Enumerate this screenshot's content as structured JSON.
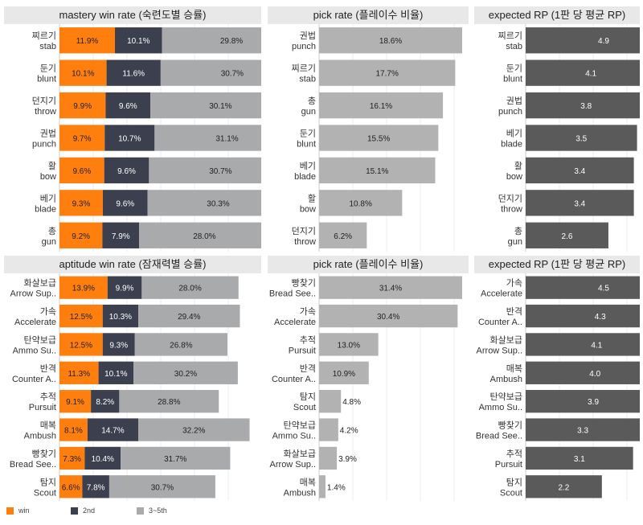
{
  "colors": {
    "win": "#ff7f0e",
    "second": "#3b3f4e",
    "third": "#a8aaac",
    "pick": "#b2b2b2",
    "rp": "#5a5a5a"
  },
  "legend": [
    {
      "label": "win",
      "color": "#ff7f0e"
    },
    {
      "label": "2nd",
      "color": "#3b3f4e"
    },
    {
      "label": "3~5th",
      "color": "#a8aaac"
    }
  ],
  "chart_data": [
    {
      "type": "bar",
      "title": "mastery win rate (숙련도별 승률)",
      "stacked": true,
      "categories": [
        [
          "찌르기",
          "stab"
        ],
        [
          "둔기",
          "blunt"
        ],
        [
          "던지기",
          "throw"
        ],
        [
          "권법",
          "punch"
        ],
        [
          "활",
          "bow"
        ],
        [
          "베기",
          "blade"
        ],
        [
          "총",
          "gun"
        ]
      ],
      "series": [
        {
          "name": "win",
          "values": [
            11.9,
            10.1,
            9.9,
            9.7,
            9.6,
            9.3,
            9.2
          ],
          "labels": [
            "11.9%",
            "10.1%",
            "9.9%",
            "9.7%",
            "9.6%",
            "9.3%",
            "9.2%"
          ]
        },
        {
          "name": "2nd",
          "values": [
            10.1,
            11.6,
            9.6,
            10.7,
            9.6,
            9.6,
            7.9
          ],
          "labels": [
            "10.1%",
            "11.6%",
            "9.6%",
            "10.7%",
            "9.6%",
            "9.6%",
            "7.9%"
          ]
        },
        {
          "name": "3~5th",
          "values": [
            29.8,
            30.7,
            30.1,
            31.1,
            30.7,
            30.3,
            28.0
          ],
          "labels": [
            "29.8%",
            "30.7%",
            "30.1%",
            "31.1%",
            "30.7%",
            "30.3%",
            "28.0%"
          ]
        }
      ]
    },
    {
      "type": "bar",
      "title": "pick rate (플레이수 비율)",
      "categories": [
        [
          "권법",
          "punch"
        ],
        [
          "찌르기",
          "stab"
        ],
        [
          "총",
          "gun"
        ],
        [
          "둔기",
          "blunt"
        ],
        [
          "베기",
          "blade"
        ],
        [
          "활",
          "bow"
        ],
        [
          "던지기",
          "throw"
        ]
      ],
      "values": [
        18.6,
        17.7,
        16.1,
        15.5,
        15.1,
        10.8,
        6.2
      ],
      "labels": [
        "18.6%",
        "17.7%",
        "16.1%",
        "15.5%",
        "15.1%",
        "10.8%",
        "6.2%"
      ]
    },
    {
      "type": "bar",
      "title": "expected RP (1판 당 평균 RP)",
      "categories": [
        [
          "찌르기",
          "stab"
        ],
        [
          "둔기",
          "blunt"
        ],
        [
          "권법",
          "punch"
        ],
        [
          "베기",
          "blade"
        ],
        [
          "활",
          "bow"
        ],
        [
          "던지기",
          "throw"
        ],
        [
          "총",
          "gun"
        ]
      ],
      "values": [
        4.9,
        4.1,
        3.8,
        3.5,
        3.4,
        3.4,
        2.6
      ],
      "labels": [
        "4.9",
        "4.1",
        "3.8",
        "3.5",
        "3.4",
        "3.4",
        "2.6"
      ]
    },
    {
      "type": "bar",
      "title": "aptitude win rate (잠재력별 승률)",
      "stacked": true,
      "categories": [
        [
          "화살보급",
          "Arrow Sup.."
        ],
        [
          "가속",
          "Accelerate"
        ],
        [
          "탄약보급",
          "Ammo Su.."
        ],
        [
          "반격",
          "Counter A.."
        ],
        [
          "추적",
          "Pursuit"
        ],
        [
          "매복",
          "Ambush"
        ],
        [
          "빵찾기",
          "Bread See.."
        ],
        [
          "탐지",
          "Scout"
        ]
      ],
      "series": [
        {
          "name": "win",
          "values": [
            13.9,
            12.5,
            12.5,
            11.3,
            9.1,
            8.1,
            7.3,
            6.6
          ],
          "labels": [
            "13.9%",
            "12.5%",
            "12.5%",
            "11.3%",
            "9.1%",
            "8.1%",
            "7.3%",
            "6.6%"
          ]
        },
        {
          "name": "2nd",
          "values": [
            9.9,
            10.3,
            9.3,
            10.1,
            8.2,
            14.7,
            10.4,
            7.8
          ],
          "labels": [
            "9.9%",
            "10.3%",
            "9.3%",
            "10.1%",
            "8.2%",
            "14.7%",
            "10.4%",
            "7.8%"
          ]
        },
        {
          "name": "3~5th",
          "values": [
            28.0,
            29.4,
            26.8,
            30.2,
            28.8,
            32.2,
            31.7,
            30.7
          ],
          "labels": [
            "28.0%",
            "29.4%",
            "26.8%",
            "30.2%",
            "28.8%",
            "32.2%",
            "31.7%",
            "30.7%"
          ]
        }
      ]
    },
    {
      "type": "bar",
      "title": "pick rate (플레이수 비율)",
      "categories": [
        [
          "빵찾기",
          "Bread See.."
        ],
        [
          "가속",
          "Accelerate"
        ],
        [
          "추적",
          "Pursuit"
        ],
        [
          "반격",
          "Counter A.."
        ],
        [
          "탐지",
          "Scout"
        ],
        [
          "탄약보급",
          "Ammo Su.."
        ],
        [
          "화살보급",
          "Arrow Sup.."
        ],
        [
          "매복",
          "Ambush"
        ]
      ],
      "values": [
        31.4,
        30.4,
        13.0,
        10.9,
        4.8,
        4.2,
        3.9,
        1.4
      ],
      "labels": [
        "31.4%",
        "30.4%",
        "13.0%",
        "10.9%",
        "4.8%",
        "4.2%",
        "3.9%",
        "1.4%"
      ]
    },
    {
      "type": "bar",
      "title": "expected RP (1판 당 평균 RP)",
      "categories": [
        [
          "가속",
          "Accelerate"
        ],
        [
          "반격",
          "Counter A.."
        ],
        [
          "화살보급",
          "Arrow Sup.."
        ],
        [
          "매복",
          "Ambush"
        ],
        [
          "탄약보급",
          "Ammo Su.."
        ],
        [
          "빵찾기",
          "Bread See.."
        ],
        [
          "추적",
          "Pursuit"
        ],
        [
          "탐지",
          "Scout"
        ]
      ],
      "values": [
        4.5,
        4.3,
        4.1,
        4.0,
        3.9,
        3.3,
        3.1,
        2.2
      ],
      "labels": [
        "4.5",
        "4.3",
        "4.1",
        "4.0",
        "3.9",
        "3.3",
        "3.1",
        "2.2"
      ]
    }
  ]
}
